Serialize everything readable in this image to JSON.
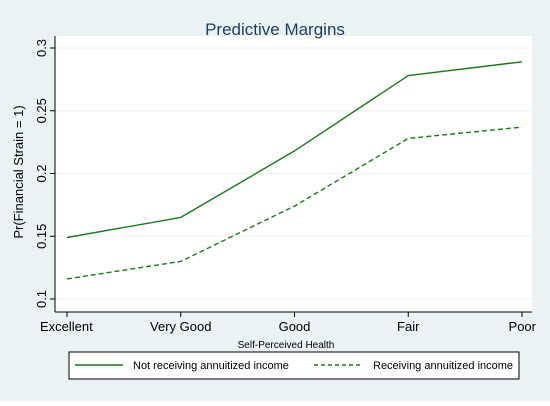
{
  "chart_data": {
    "type": "line",
    "title": "Predictive Margins",
    "xlabel": "Self-Perceived Health",
    "ylabel": "Pr(Financial Strain = 1)",
    "categories": [
      "Excellent",
      "Very Good",
      "Good",
      "Fair",
      "Poor"
    ],
    "ylim": [
      0.1,
      0.3
    ],
    "yticks": [
      0.1,
      0.15,
      0.2,
      0.25,
      0.3
    ],
    "ytick_labels": [
      "0.1",
      "0.15",
      "0.2",
      "0.25",
      "0.3"
    ],
    "grid": "horizontal",
    "legend_position": "bottom",
    "series": [
      {
        "name": "Not receiving annuitized income",
        "values": [
          0.149,
          0.165,
          0.218,
          0.278,
          0.289
        ],
        "style": "solid",
        "color": "#1a7a1a"
      },
      {
        "name": "Receiving annuitized income",
        "values": [
          0.116,
          0.13,
          0.174,
          0.228,
          0.237
        ],
        "style": "dashed",
        "color": "#1a7a1a"
      }
    ]
  },
  "colors": {
    "outer_background": "#eaf2f3",
    "plot_background": "#ffffff",
    "gridline": "#eaf2f3",
    "axis": "#000000",
    "text": "#000000",
    "title": "#1c3d5e"
  }
}
